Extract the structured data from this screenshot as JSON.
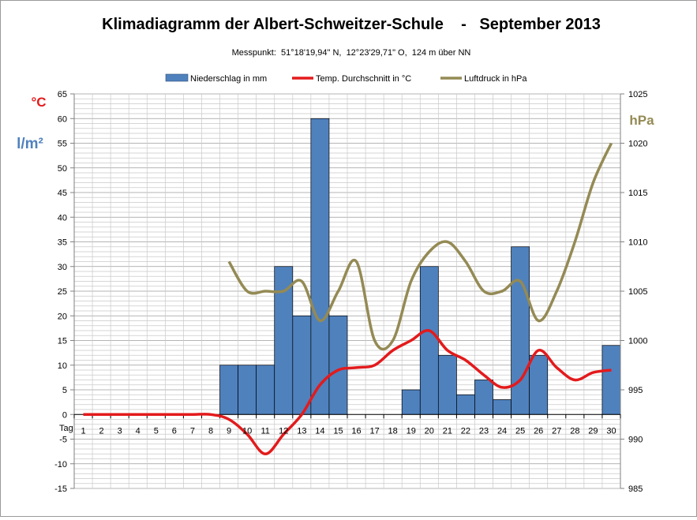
{
  "chart_data": {
    "type": "bar",
    "title": "Klimadiagramm der Albert-Schweitzer-Schule    -   September 2013",
    "subtitle": "Messpunkt:  51°18'19,94\" N,  12°23'29,71\" O,  124 m über NN",
    "xlabel": "Tag",
    "y_left_unit_temp": "°C",
    "y_left_unit_precip": "l/m²",
    "y_right_unit": "hPa",
    "ylim": [
      -15,
      65
    ],
    "ylim_right": [
      985,
      1025
    ],
    "y_ticks": [
      -15,
      -10,
      -5,
      0,
      5,
      10,
      15,
      20,
      25,
      30,
      35,
      40,
      45,
      50,
      55,
      60,
      65
    ],
    "y_right_ticks": [
      985,
      990,
      995,
      1000,
      1005,
      1010,
      1015,
      1020,
      1025
    ],
    "grid": true,
    "legend_position": "top",
    "legend": [
      "Niederschlag in mm",
      "Temp. Durchschnitt in °C",
      "Luftdruck in hPa"
    ],
    "categories": [
      "1",
      "2",
      "3",
      "4",
      "5",
      "6",
      "7",
      "8",
      "9",
      "10",
      "11",
      "12",
      "13",
      "14",
      "15",
      "16",
      "17",
      "18",
      "19",
      "20",
      "21",
      "22",
      "23",
      "24",
      "25",
      "26",
      "27",
      "28",
      "29",
      "30"
    ],
    "series": [
      {
        "name": "Niederschlag in mm",
        "type": "bar",
        "axis": "left",
        "color": "#4f81bd",
        "values": [
          0,
          0,
          0,
          0,
          0,
          0,
          0,
          0,
          10,
          10,
          10,
          30,
          20,
          60,
          20,
          0,
          0,
          0,
          5,
          30,
          12,
          4,
          7,
          3,
          34,
          12,
          0,
          0,
          0,
          14
        ]
      },
      {
        "name": "Temp. Durchschnitt in °C",
        "type": "line",
        "axis": "left",
        "color": "#e31a1c",
        "values": [
          0,
          0,
          0,
          0,
          0,
          0,
          0,
          0,
          -1,
          -4,
          -8,
          -4,
          0,
          6,
          9,
          9.5,
          10,
          13,
          15,
          17,
          13,
          11,
          8,
          5.5,
          7,
          13,
          9.5,
          7,
          8.5,
          9
        ]
      },
      {
        "name": "Luftdruck in hPa",
        "type": "line",
        "axis": "right",
        "color": "#948a54",
        "values": [
          null,
          null,
          null,
          null,
          null,
          null,
          null,
          null,
          1008,
          1005,
          1005,
          1005,
          1006,
          1002,
          1005,
          1008,
          1000,
          1000,
          1006,
          1009,
          1010,
          1008,
          1005,
          1005,
          1006,
          1002,
          1005,
          1010,
          1016,
          1020
        ]
      }
    ]
  }
}
